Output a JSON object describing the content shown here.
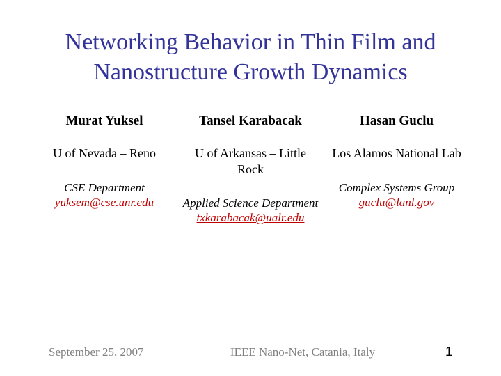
{
  "title": "Networking Behavior in Thin Film and Nanostructure Growth Dynamics",
  "authors": [
    {
      "name": "Murat Yuksel",
      "affiliation": "U of Nevada – Reno",
      "department": "CSE Department",
      "email": "yuksem@cse.unr.edu"
    },
    {
      "name": "Tansel Karabacak",
      "affiliation": "U of Arkansas – Little Rock",
      "department": "Applied Science Department",
      "email": "txkarabacak@ualr.edu"
    },
    {
      "name": "Hasan Guclu",
      "affiliation": "Los Alamos National Lab",
      "department": "Complex Systems Group",
      "email": "guclu@lanl.gov"
    }
  ],
  "footer": {
    "date": "September 25, 2007",
    "venue": "IEEE Nano-Net, Catania, Italy",
    "page": "1"
  },
  "colors": {
    "title": "#333399",
    "body": "#000000",
    "email": "#c00000",
    "footer": "#808080",
    "background": "#ffffff"
  }
}
